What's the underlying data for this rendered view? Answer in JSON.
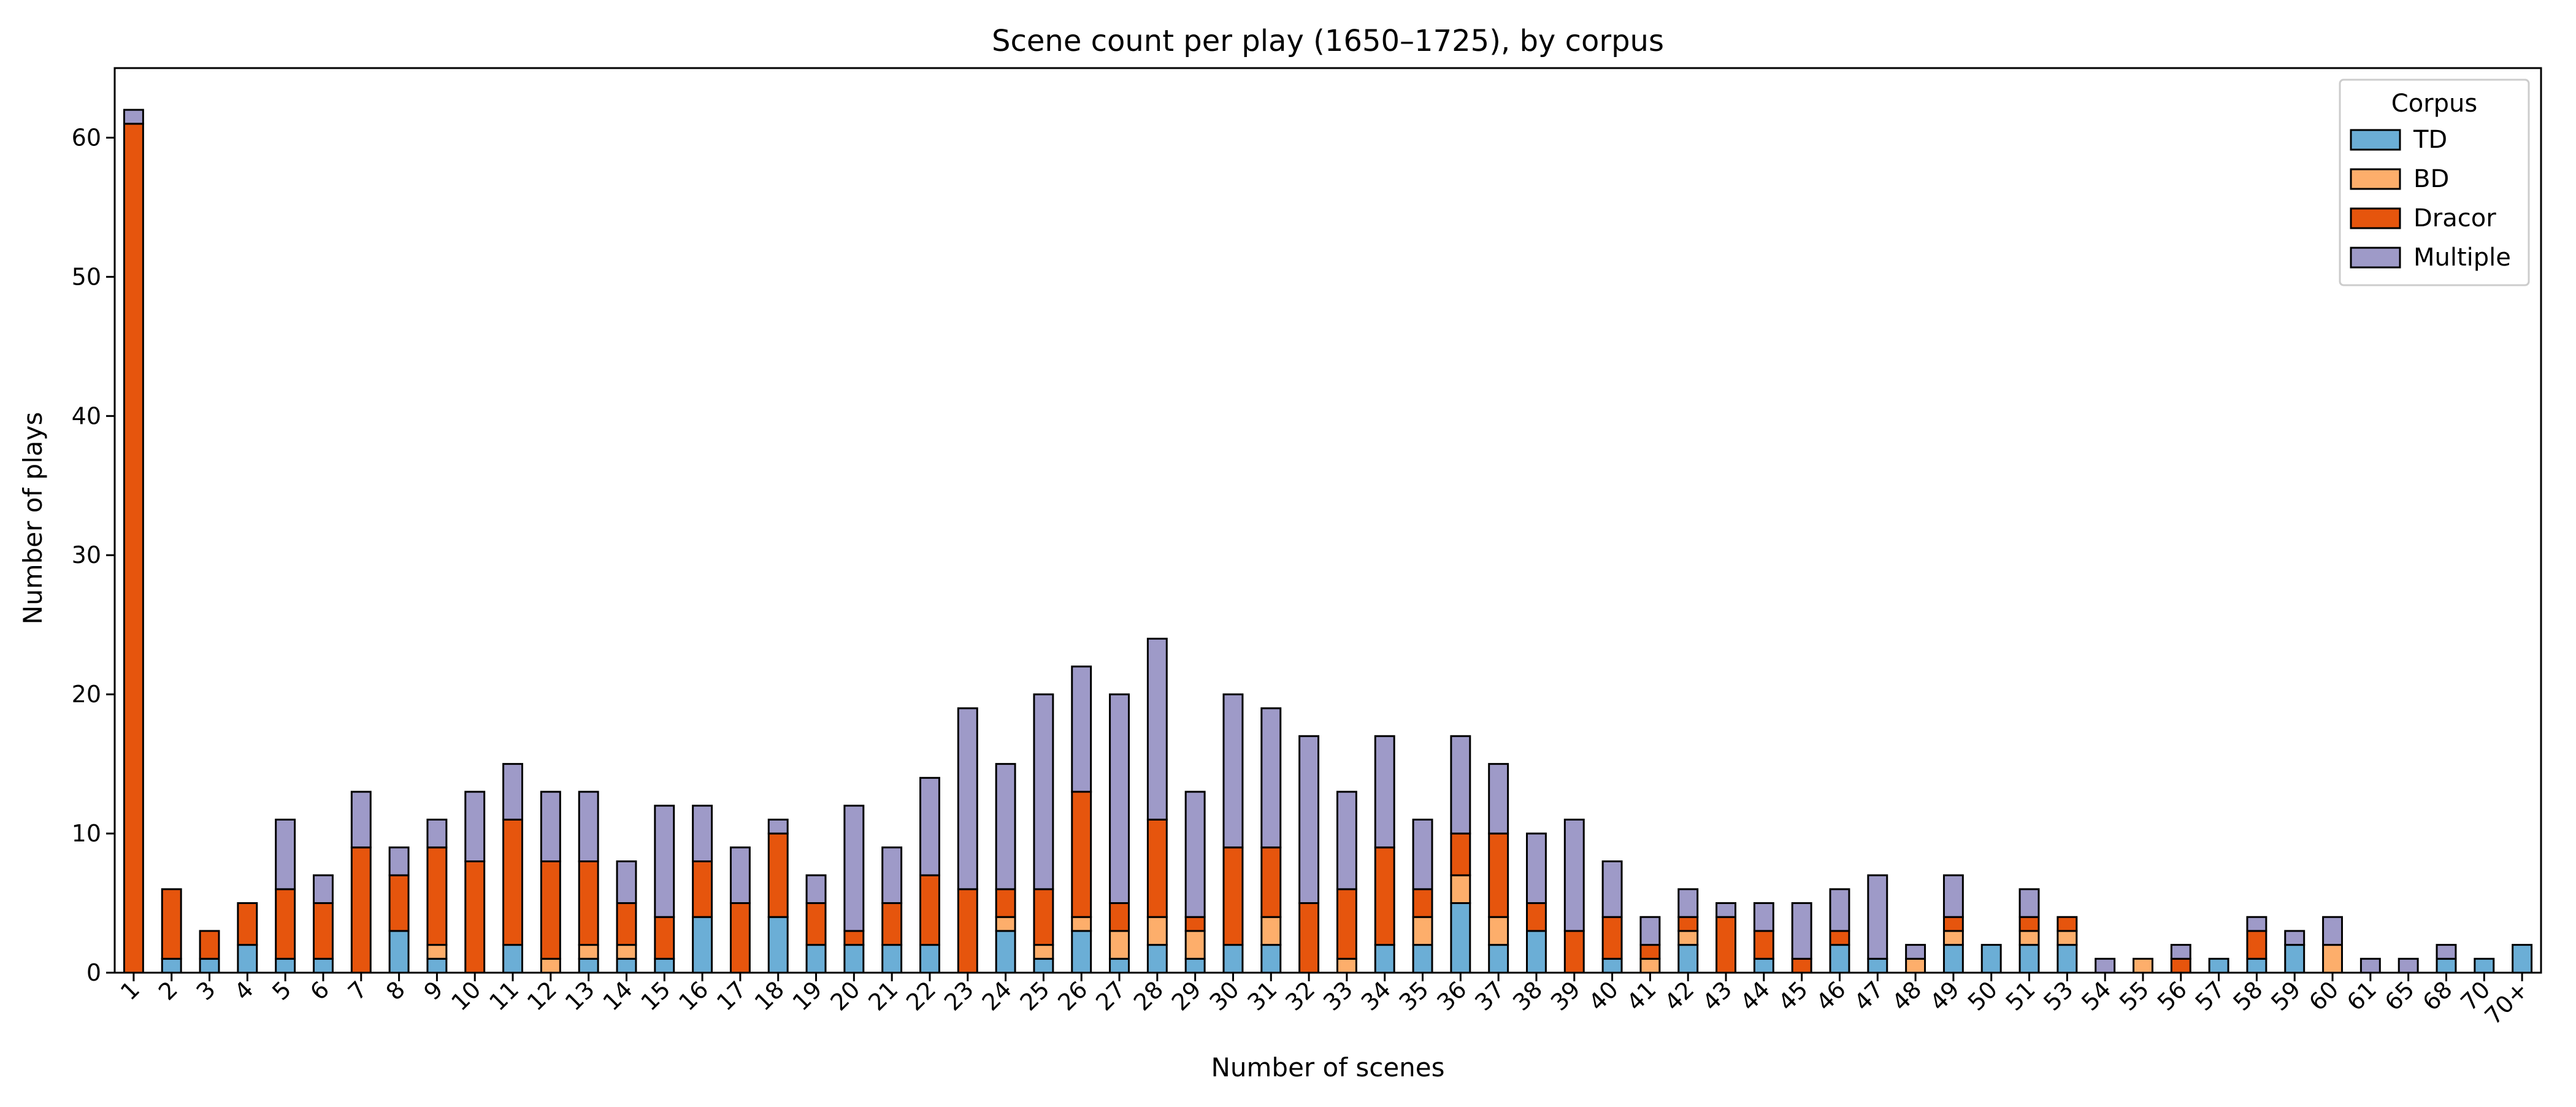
{
  "chart_data": {
    "type": "bar",
    "stacked": true,
    "title": "Scene count per play (1650–1725), by corpus",
    "xlabel": "Number of scenes",
    "ylabel": "Number of plays",
    "ylim": [
      0,
      65
    ],
    "yticks": [
      0,
      10,
      20,
      30,
      40,
      50,
      60
    ],
    "legend": {
      "title": "Corpus",
      "position": "top-right"
    },
    "categories": [
      "1",
      "2",
      "3",
      "4",
      "5",
      "6",
      "7",
      "8",
      "9",
      "10",
      "11",
      "12",
      "13",
      "14",
      "15",
      "16",
      "17",
      "18",
      "19",
      "20",
      "21",
      "22",
      "23",
      "24",
      "25",
      "26",
      "27",
      "28",
      "29",
      "30",
      "31",
      "32",
      "33",
      "34",
      "35",
      "36",
      "37",
      "38",
      "39",
      "40",
      "41",
      "42",
      "43",
      "44",
      "45",
      "46",
      "47",
      "48",
      "49",
      "50",
      "51",
      "53",
      "54",
      "55",
      "56",
      "57",
      "58",
      "59",
      "60",
      "61",
      "65",
      "68",
      "70",
      "70+"
    ],
    "series": [
      {
        "name": "TD",
        "color": "#6baed6",
        "values": [
          0,
          1,
          1,
          2,
          1,
          1,
          0,
          3,
          1,
          0,
          2,
          0,
          1,
          1,
          1,
          4,
          0,
          4,
          2,
          2,
          2,
          2,
          0,
          3,
          1,
          3,
          1,
          2,
          1,
          2,
          2,
          0,
          0,
          2,
          2,
          5,
          2,
          3,
          0,
          1,
          0,
          2,
          0,
          1,
          0,
          2,
          1,
          0,
          2,
          2,
          2,
          2,
          0,
          0,
          0,
          1,
          1,
          2,
          0,
          0,
          0,
          1,
          1,
          2
        ]
      },
      {
        "name": "BD",
        "color": "#fdae6b",
        "values": [
          0,
          0,
          0,
          0,
          0,
          0,
          0,
          0,
          1,
          0,
          0,
          1,
          1,
          1,
          0,
          0,
          0,
          0,
          0,
          0,
          0,
          0,
          0,
          1,
          1,
          1,
          2,
          2,
          2,
          0,
          2,
          0,
          1,
          0,
          2,
          2,
          2,
          0,
          0,
          0,
          1,
          1,
          0,
          0,
          0,
          0,
          0,
          1,
          1,
          0,
          1,
          1,
          0,
          1,
          0,
          0,
          0,
          0,
          2,
          0,
          0,
          0,
          0,
          0
        ]
      },
      {
        "name": "Dracor",
        "color": "#e6550d",
        "values": [
          61,
          5,
          2,
          3,
          5,
          4,
          9,
          4,
          7,
          8,
          9,
          7,
          6,
          3,
          3,
          4,
          5,
          6,
          3,
          1,
          3,
          5,
          6,
          2,
          4,
          9,
          2,
          7,
          1,
          7,
          5,
          5,
          5,
          7,
          2,
          3,
          6,
          2,
          3,
          3,
          1,
          1,
          4,
          2,
          1,
          1,
          0,
          0,
          1,
          0,
          1,
          1,
          0,
          0,
          1,
          0,
          2,
          0,
          0,
          0,
          0,
          0,
          0,
          0
        ]
      },
      {
        "name": "Multiple",
        "color": "#9e9ac8",
        "values": [
          1,
          0,
          0,
          0,
          5,
          2,
          4,
          2,
          2,
          5,
          4,
          5,
          5,
          3,
          8,
          4,
          4,
          1,
          2,
          9,
          4,
          7,
          13,
          9,
          14,
          9,
          15,
          13,
          9,
          11,
          10,
          12,
          7,
          8,
          5,
          7,
          5,
          5,
          8,
          4,
          2,
          2,
          1,
          2,
          4,
          3,
          6,
          1,
          3,
          0,
          2,
          0,
          1,
          0,
          1,
          0,
          1,
          1,
          2,
          1,
          1,
          1,
          0,
          0
        ]
      }
    ]
  }
}
